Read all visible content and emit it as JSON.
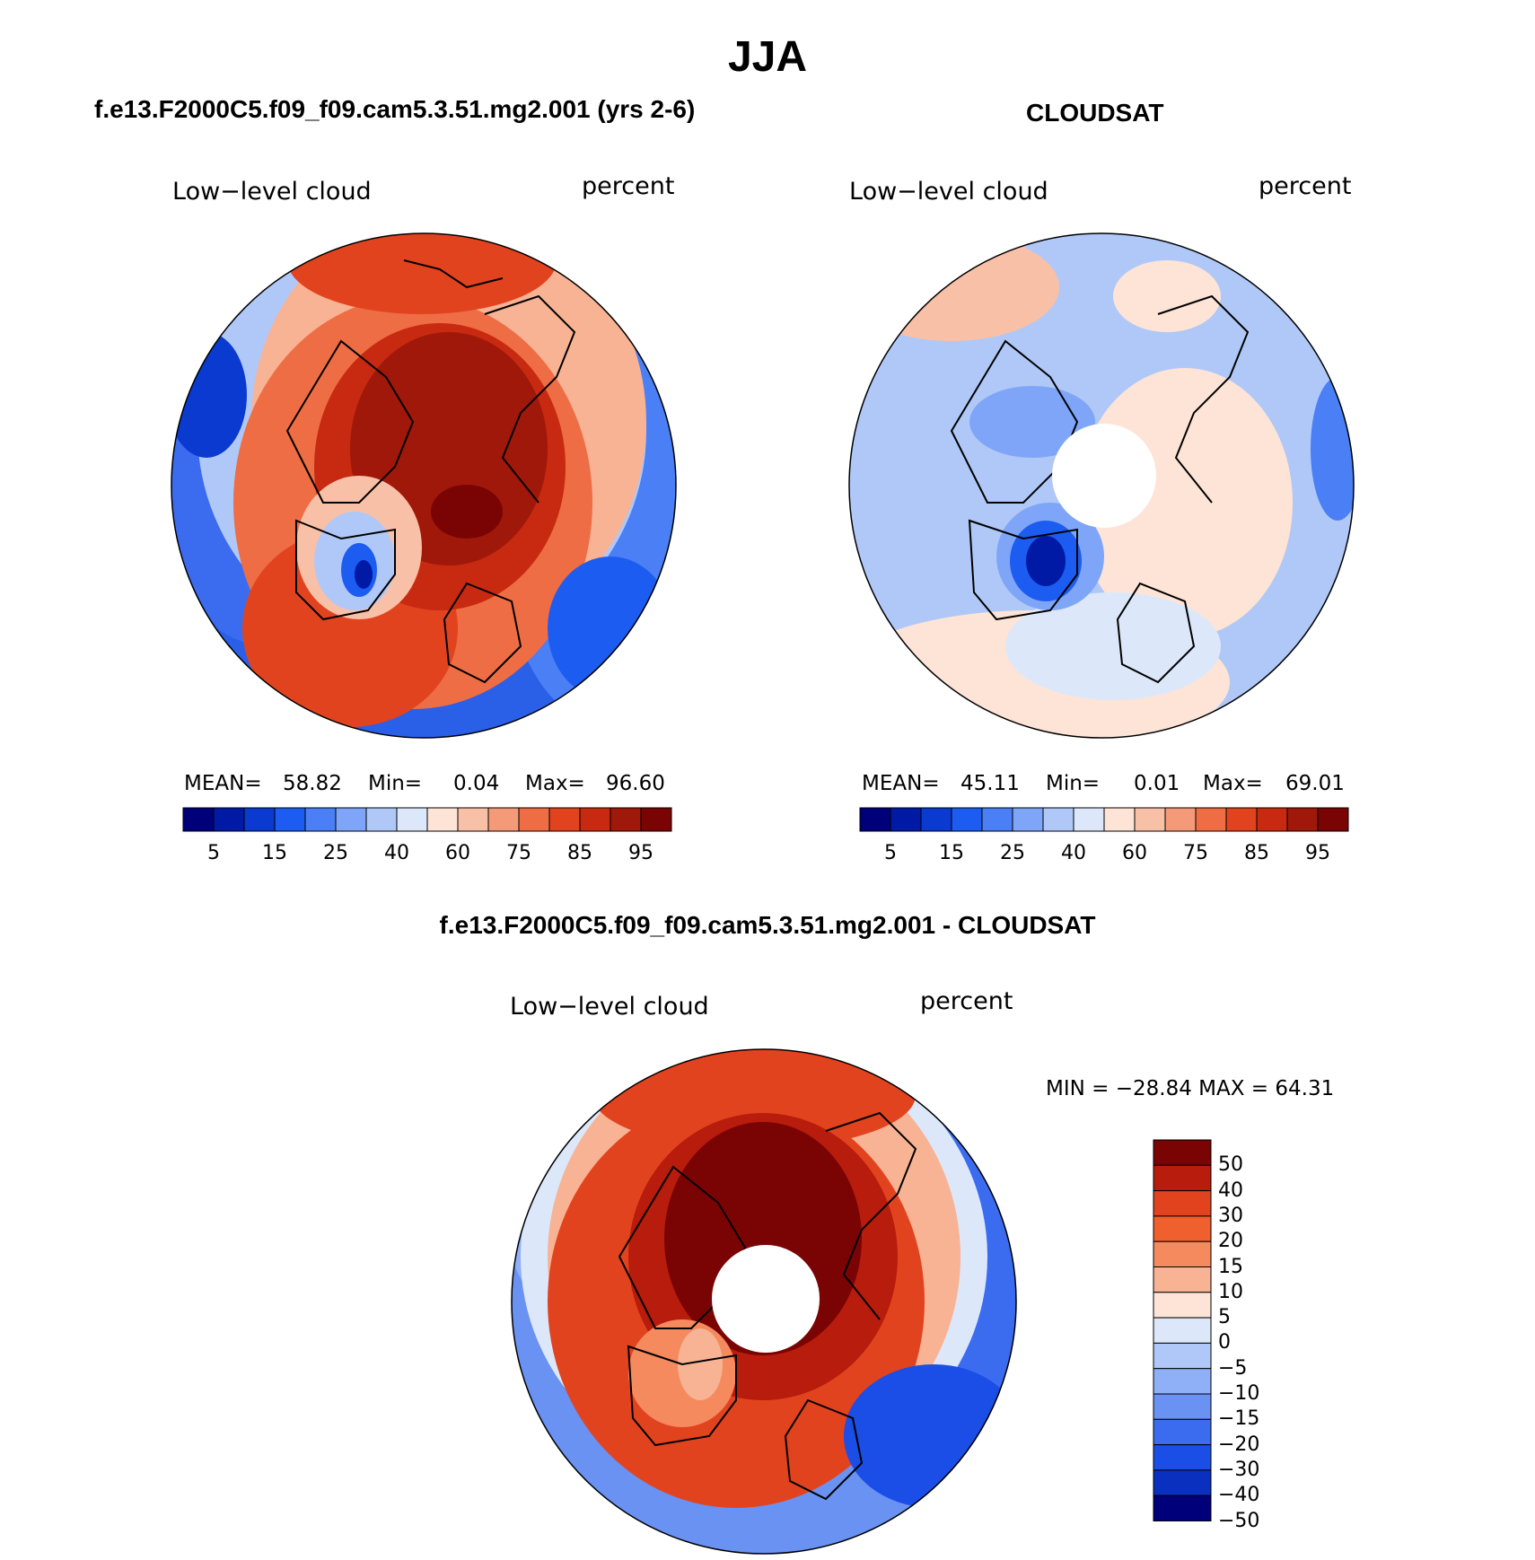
{
  "figure": {
    "season": "JJA",
    "diff_title": "f.e13.F2000C5.f09_f09.cam5.3.51.mg2.001 - CLOUDSAT"
  },
  "panels": [
    {
      "title": "f.e13.F2000C5.f09_f09.cam5.3.51.mg2.001 (yrs 2-6)",
      "variable": "Low−level cloud",
      "units": "percent",
      "mean_label": "MEAN=",
      "mean": "58.82",
      "min_label": "Min=",
      "min": "0.04",
      "max_label": "Max=",
      "max": "96.60"
    },
    {
      "title": "CLOUDSAT",
      "variable": "Low−level cloud",
      "units": "percent",
      "mean_label": "MEAN=",
      "mean": "45.11",
      "min_label": "Min=",
      "min": "0.01",
      "max_label": "Max=",
      "max": "69.01"
    }
  ],
  "diff_panel": {
    "variable": "Low−level cloud",
    "units": "percent",
    "minmax_text": "MIN = −28.84 MAX =   64.31"
  },
  "colorbar_abs": {
    "colors": [
      "#00007a",
      "#001aa6",
      "#0a3acf",
      "#1d5cf0",
      "#4a7ff5",
      "#7ea5f7",
      "#b0c8f7",
      "#dce8fa",
      "#fde4d6",
      "#f9c0a8",
      "#f49a78",
      "#ee6d44",
      "#e2431f",
      "#c72a10",
      "#a0180a",
      "#7a0404"
    ],
    "tick_labels": [
      "5",
      "15",
      "25",
      "40",
      "60",
      "75",
      "85",
      "95"
    ],
    "tick_boundaries": [
      1,
      3,
      5,
      7,
      9,
      11,
      13,
      15
    ]
  },
  "colorbar_diff": {
    "colors_top_to_bottom": [
      "#7a0404",
      "#b71c0c",
      "#e2431f",
      "#f0602e",
      "#f48a5e",
      "#f7b394",
      "#fde4d6",
      "#dce8fa",
      "#b0c8f7",
      "#8fb0f6",
      "#6a92f3",
      "#3b6cf0",
      "#1a4ee6",
      "#0a30c0",
      "#00007a"
    ],
    "tick_labels_top_to_bottom": [
      "50",
      "40",
      "30",
      "20",
      "15",
      "10",
      "5",
      "0",
      "−5",
      "−10",
      "−15",
      "−20",
      "−30",
      "−40",
      "−50"
    ]
  },
  "maps": {
    "model": {
      "has_missing_pole": false,
      "pattern": "high over Arctic ocean, low over N Pacific/Atlantic"
    },
    "obs": {
      "has_missing_pole": true,
      "pattern": "moderate, low over Greenland"
    },
    "diff": {
      "has_missing_pole": true,
      "pattern": "positive over Arctic, negative over Pacific/Atlantic"
    }
  }
}
